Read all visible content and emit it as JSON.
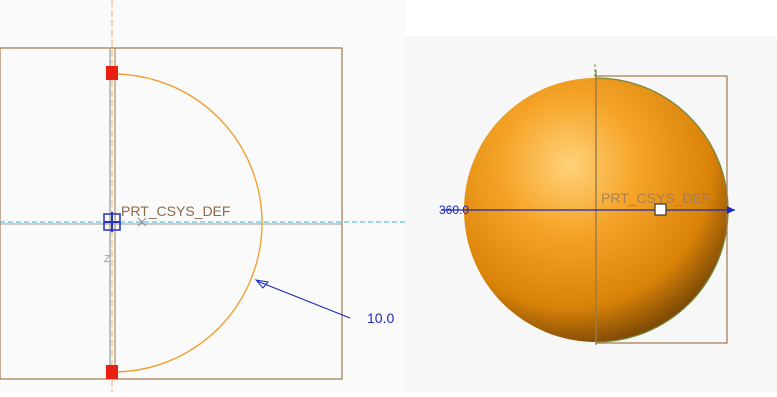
{
  "sketch_view": {
    "csys_label": "PRT_CSYS_DEF",
    "axis_label": "Z",
    "radius_dimension": "10.0",
    "colors": {
      "arc": "#f0a030",
      "frame": "#a0784e",
      "centerline_v": "#e8b070",
      "centerline_h": "#3cb8d8",
      "dimension": "#1a2ab8",
      "vertex_marker": "#e82010",
      "csys_marker": "#2030c8"
    }
  },
  "model_view": {
    "csys_label": "PRT_CSYS_DEF",
    "angle_dimension": "360.0",
    "colors": {
      "sphere_light": "#ffd27a",
      "sphere_mid": "#f19a10",
      "sphere_dark": "#6b3e05",
      "frame": "#a0784e",
      "seam": "#7a8a3a",
      "dimension": "#1a2ab8"
    }
  }
}
